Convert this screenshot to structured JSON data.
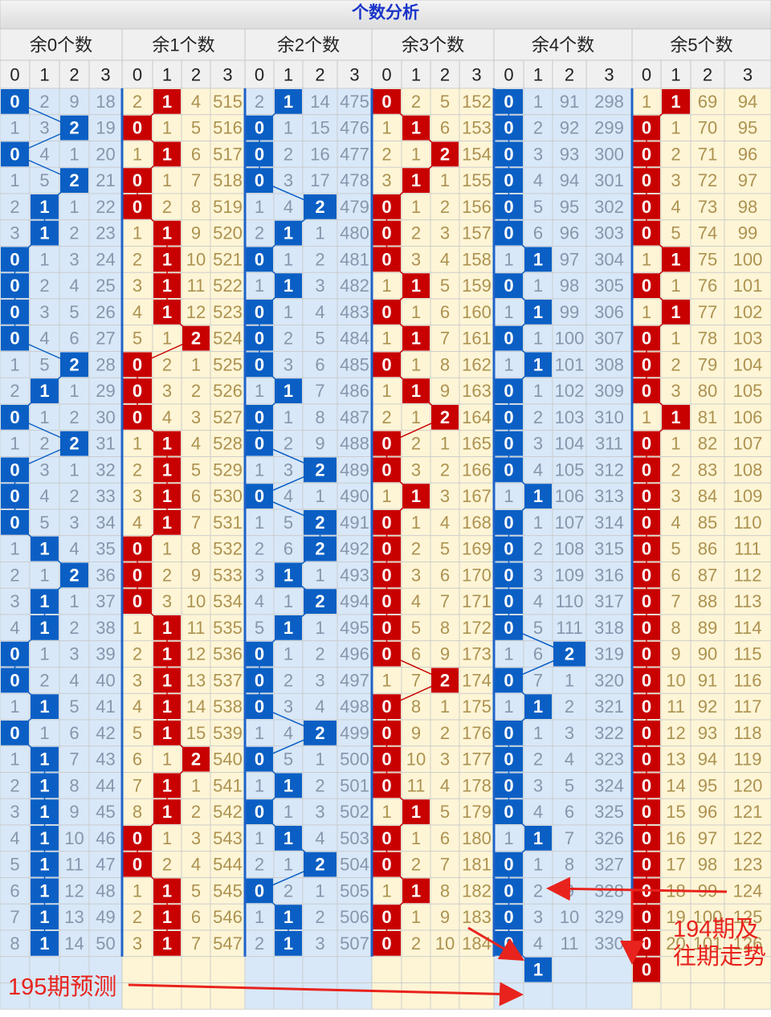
{
  "title": "个数分析",
  "group_headers": [
    "余0个数",
    "余1个数",
    "余2个数",
    "余3个数",
    "余4个数",
    "余5个数"
  ],
  "col_headers": [
    0,
    1,
    2,
    3
  ],
  "rows": [
    [
      0,
      2,
      9,
      18,
      2,
      1,
      4,
      515,
      2,
      1,
      14,
      475,
      0,
      2,
      5,
      152,
      0,
      1,
      91,
      298,
      1,
      1,
      69,
      94
    ],
    [
      1,
      3,
      2,
      19,
      0,
      1,
      5,
      516,
      0,
      1,
      15,
      476,
      1,
      1,
      6,
      153,
      0,
      2,
      92,
      299,
      0,
      1,
      70,
      95
    ],
    [
      0,
      4,
      1,
      20,
      1,
      1,
      6,
      517,
      0,
      2,
      16,
      477,
      2,
      1,
      2,
      154,
      0,
      3,
      93,
      300,
      0,
      2,
      71,
      96
    ],
    [
      1,
      5,
      2,
      21,
      0,
      1,
      7,
      518,
      0,
      3,
      17,
      478,
      3,
      1,
      1,
      155,
      0,
      4,
      94,
      301,
      0,
      3,
      72,
      97
    ],
    [
      2,
      1,
      1,
      22,
      0,
      2,
      8,
      519,
      1,
      4,
      2,
      479,
      0,
      1,
      2,
      156,
      0,
      5,
      95,
      302,
      0,
      4,
      73,
      98
    ],
    [
      3,
      1,
      2,
      23,
      1,
      1,
      9,
      520,
      2,
      1,
      1,
      480,
      0,
      2,
      3,
      157,
      0,
      6,
      96,
      303,
      0,
      5,
      74,
      99
    ],
    [
      0,
      1,
      3,
      24,
      2,
      1,
      10,
      521,
      0,
      1,
      2,
      481,
      0,
      3,
      4,
      158,
      1,
      1,
      97,
      304,
      1,
      1,
      75,
      100
    ],
    [
      0,
      2,
      4,
      25,
      3,
      1,
      11,
      522,
      1,
      1,
      3,
      482,
      1,
      1,
      5,
      159,
      0,
      1,
      98,
      305,
      0,
      1,
      76,
      101
    ],
    [
      0,
      3,
      5,
      26,
      4,
      1,
      12,
      523,
      0,
      1,
      4,
      483,
      0,
      1,
      6,
      160,
      1,
      1,
      99,
      306,
      1,
      1,
      77,
      102
    ],
    [
      0,
      4,
      6,
      27,
      5,
      1,
      2,
      524,
      0,
      2,
      5,
      484,
      1,
      1,
      7,
      161,
      0,
      1,
      100,
      307,
      0,
      1,
      78,
      103
    ],
    [
      1,
      5,
      2,
      28,
      0,
      2,
      1,
      525,
      0,
      3,
      6,
      485,
      0,
      1,
      8,
      162,
      1,
      1,
      101,
      308,
      0,
      2,
      79,
      104
    ],
    [
      2,
      1,
      1,
      29,
      0,
      3,
      2,
      526,
      1,
      1,
      7,
      486,
      1,
      1,
      9,
      163,
      0,
      1,
      102,
      309,
      0,
      3,
      80,
      105
    ],
    [
      0,
      1,
      2,
      30,
      0,
      4,
      3,
      527,
      0,
      1,
      8,
      487,
      2,
      1,
      2,
      164,
      0,
      2,
      103,
      310,
      1,
      1,
      81,
      106
    ],
    [
      1,
      2,
      2,
      31,
      1,
      1,
      4,
      528,
      0,
      2,
      9,
      488,
      0,
      2,
      1,
      165,
      0,
      3,
      104,
      311,
      0,
      1,
      82,
      107
    ],
    [
      0,
      3,
      1,
      32,
      2,
      1,
      5,
      529,
      1,
      3,
      2,
      489,
      0,
      3,
      2,
      166,
      0,
      4,
      105,
      312,
      0,
      2,
      83,
      108
    ],
    [
      0,
      4,
      2,
      33,
      3,
      1,
      6,
      530,
      0,
      4,
      1,
      490,
      1,
      1,
      3,
      167,
      1,
      1,
      106,
      313,
      0,
      3,
      84,
      109
    ],
    [
      0,
      5,
      3,
      34,
      4,
      1,
      7,
      531,
      1,
      5,
      2,
      491,
      0,
      1,
      4,
      168,
      0,
      1,
      107,
      314,
      0,
      4,
      85,
      110
    ],
    [
      1,
      1,
      4,
      35,
      0,
      1,
      8,
      532,
      2,
      6,
      2,
      492,
      0,
      2,
      5,
      169,
      0,
      2,
      108,
      315,
      0,
      5,
      86,
      111
    ],
    [
      2,
      1,
      2,
      36,
      0,
      2,
      9,
      533,
      3,
      1,
      1,
      493,
      0,
      3,
      6,
      170,
      0,
      3,
      109,
      316,
      0,
      6,
      87,
      112
    ],
    [
      3,
      1,
      1,
      37,
      0,
      3,
      10,
      534,
      4,
      1,
      2,
      494,
      0,
      4,
      7,
      171,
      0,
      4,
      110,
      317,
      0,
      7,
      88,
      113
    ],
    [
      4,
      1,
      2,
      38,
      1,
      1,
      11,
      535,
      5,
      1,
      1,
      495,
      0,
      5,
      8,
      172,
      0,
      5,
      111,
      318,
      0,
      8,
      89,
      114
    ],
    [
      0,
      1,
      3,
      39,
      2,
      1,
      12,
      536,
      0,
      1,
      2,
      496,
      0,
      6,
      9,
      173,
      1,
      6,
      2,
      319,
      0,
      9,
      90,
      115
    ],
    [
      0,
      2,
      4,
      40,
      3,
      1,
      13,
      537,
      0,
      2,
      3,
      497,
      1,
      7,
      2,
      174,
      0,
      7,
      1,
      320,
      0,
      10,
      91,
      116
    ],
    [
      1,
      1,
      5,
      41,
      4,
      1,
      14,
      538,
      0,
      3,
      4,
      498,
      0,
      8,
      1,
      175,
      1,
      1,
      2,
      321,
      0,
      11,
      92,
      117
    ],
    [
      0,
      1,
      6,
      42,
      5,
      1,
      15,
      539,
      1,
      4,
      2,
      499,
      0,
      9,
      2,
      176,
      0,
      1,
      3,
      322,
      0,
      12,
      93,
      118
    ],
    [
      1,
      1,
      7,
      43,
      6,
      1,
      2,
      540,
      0,
      5,
      1,
      500,
      0,
      10,
      3,
      177,
      0,
      2,
      4,
      323,
      0,
      13,
      94,
      119
    ],
    [
      2,
      1,
      8,
      44,
      7,
      1,
      1,
      541,
      1,
      1,
      2,
      501,
      0,
      11,
      4,
      178,
      0,
      3,
      5,
      324,
      0,
      14,
      95,
      120
    ],
    [
      3,
      1,
      9,
      45,
      8,
      1,
      2,
      542,
      0,
      1,
      3,
      502,
      1,
      1,
      5,
      179,
      0,
      4,
      6,
      325,
      0,
      15,
      96,
      121
    ],
    [
      4,
      1,
      10,
      46,
      0,
      1,
      3,
      543,
      1,
      1,
      4,
      503,
      0,
      1,
      6,
      180,
      1,
      1,
      7,
      326,
      0,
      16,
      97,
      122
    ],
    [
      5,
      1,
      11,
      47,
      0,
      2,
      4,
      544,
      2,
      1,
      2,
      504,
      0,
      2,
      7,
      181,
      0,
      1,
      8,
      327,
      0,
      17,
      98,
      123
    ],
    [
      6,
      1,
      12,
      48,
      1,
      1,
      5,
      545,
      0,
      2,
      1,
      505,
      1,
      1,
      8,
      182,
      0,
      2,
      9,
      328,
      0,
      18,
      99,
      124
    ],
    [
      7,
      1,
      13,
      49,
      2,
      1,
      6,
      546,
      1,
      1,
      2,
      506,
      0,
      1,
      9,
      183,
      0,
      3,
      10,
      329,
      0,
      19,
      100,
      125
    ],
    [
      8,
      1,
      14,
      50,
      3,
      1,
      7,
      547,
      2,
      1,
      3,
      507,
      0,
      2,
      10,
      184,
      0,
      4,
      11,
      330,
      0,
      20,
      101,
      126
    ]
  ],
  "hits": [
    [
      0,
      1,
      1,
      0,
      0,
      1
    ],
    [
      2,
      0,
      0,
      1,
      0,
      0
    ],
    [
      0,
      1,
      0,
      2,
      0,
      0
    ],
    [
      2,
      0,
      0,
      1,
      0,
      0
    ],
    [
      1,
      0,
      2,
      0,
      0,
      0
    ],
    [
      1,
      1,
      1,
      0,
      0,
      0
    ],
    [
      0,
      1,
      0,
      0,
      1,
      1
    ],
    [
      0,
      1,
      1,
      1,
      0,
      0
    ],
    [
      0,
      1,
      0,
      0,
      1,
      1
    ],
    [
      0,
      2,
      0,
      1,
      0,
      0
    ],
    [
      2,
      0,
      0,
      0,
      1,
      0
    ],
    [
      1,
      0,
      1,
      1,
      0,
      0
    ],
    [
      0,
      0,
      0,
      2,
      0,
      1
    ],
    [
      2,
      1,
      0,
      0,
      0,
      0
    ],
    [
      0,
      1,
      2,
      0,
      0,
      0
    ],
    [
      0,
      1,
      0,
      1,
      1,
      0
    ],
    [
      0,
      1,
      2,
      0,
      0,
      0
    ],
    [
      1,
      0,
      2,
      0,
      0,
      0
    ],
    [
      2,
      0,
      1,
      0,
      0,
      0
    ],
    [
      1,
      0,
      2,
      0,
      0,
      0
    ],
    [
      1,
      1,
      1,
      0,
      0,
      0
    ],
    [
      0,
      1,
      0,
      0,
      2,
      0
    ],
    [
      0,
      1,
      0,
      2,
      0,
      0
    ],
    [
      1,
      1,
      0,
      0,
      1,
      0
    ],
    [
      0,
      1,
      2,
      0,
      0,
      0
    ],
    [
      1,
      2,
      0,
      0,
      0,
      0
    ],
    [
      1,
      1,
      1,
      0,
      0,
      0
    ],
    [
      1,
      1,
      0,
      1,
      0,
      0
    ],
    [
      1,
      0,
      1,
      0,
      1,
      0
    ],
    [
      1,
      0,
      2,
      0,
      0,
      0
    ],
    [
      1,
      1,
      0,
      1,
      0,
      0
    ],
    [
      1,
      1,
      1,
      0,
      0,
      0
    ],
    [
      1,
      1,
      1,
      0,
      0,
      0
    ]
  ],
  "prediction_row": [
    null,
    null,
    null,
    null,
    null,
    null,
    null,
    null,
    null,
    null,
    null,
    null,
    null,
    null,
    null,
    null,
    null,
    1,
    null,
    null,
    0,
    null,
    null,
    null
  ],
  "annotations": {
    "prediction": "195期预测",
    "history": "194期及往期走势"
  }
}
